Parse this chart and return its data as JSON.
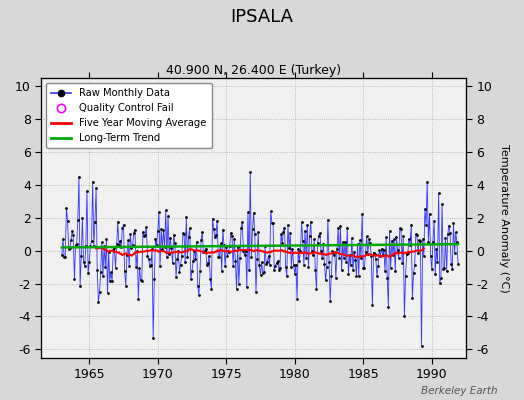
{
  "title": "IPSALA",
  "subtitle": "40.900 N, 26.400 E (Turkey)",
  "ylabel": "Temperature Anomaly (°C)",
  "watermark": "Berkeley Earth",
  "xlim": [
    1961.5,
    1992.5
  ],
  "ylim": [
    -6.5,
    10.5
  ],
  "yticks": [
    -6,
    -4,
    -2,
    0,
    2,
    4,
    6,
    8,
    10
  ],
  "xticks": [
    1965,
    1970,
    1975,
    1980,
    1985,
    1990
  ],
  "background_color": "#d8d8d8",
  "plot_bg_color": "#f0f0f0",
  "raw_line_color": "#3333ff",
  "raw_marker_color": "#000000",
  "moving_avg_color": "#ff0000",
  "trend_color": "#00aa00",
  "qc_color": "#ff00ff",
  "seed": 12345,
  "n_months": 348,
  "start_year": 1963.0
}
